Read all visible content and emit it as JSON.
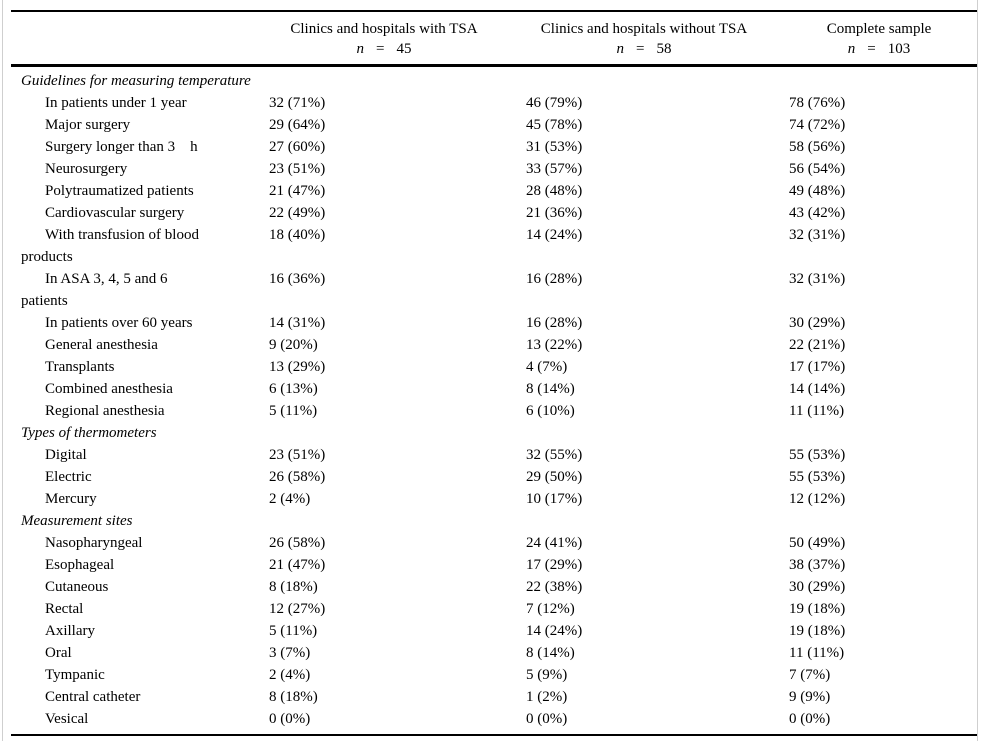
{
  "table": {
    "columns": [
      {
        "title": "Clinics and hospitals with TSA",
        "n_symbol": "n",
        "equals": "=",
        "n_value": "45"
      },
      {
        "title": "Clinics and hospitals without TSA",
        "n_symbol": "n",
        "equals": "=",
        "n_value": "58"
      },
      {
        "title": "Complete sample",
        "n_symbol": "n",
        "equals": "=",
        "n_value": "103"
      }
    ],
    "sections": [
      {
        "title": "Guidelines for measuring temperature",
        "rows": [
          {
            "label": "In patients under 1 year",
            "values": [
              "32 (71%)",
              "46 (79%)",
              "78 (76%)"
            ]
          },
          {
            "label": "Major surgery",
            "values": [
              "29 (64%)",
              "45 (78%)",
              "74 (72%)"
            ]
          },
          {
            "label": "Surgery longer than 3    h",
            "values": [
              "27 (60%)",
              "31 (53%)",
              "58 (56%)"
            ]
          },
          {
            "label": "Neurosurgery",
            "values": [
              "23 (51%)",
              "33 (57%)",
              "56 (54%)"
            ]
          },
          {
            "label": "Polytraumatized patients",
            "values": [
              "21 (47%)",
              "28 (48%)",
              "49 (48%)"
            ]
          },
          {
            "label": "Cardiovascular surgery",
            "values": [
              "22 (49%)",
              "21 (36%)",
              "43 (42%)"
            ]
          },
          {
            "label": "With transfusion of blood\nproducts",
            "values": [
              "18 (40%)",
              "14 (24%)",
              "32 (31%)"
            ]
          },
          {
            "label": "In ASA 3, 4, 5 and 6\npatients",
            "values": [
              "16 (36%)",
              "16 (28%)",
              "32 (31%)"
            ]
          },
          {
            "label": "In patients over 60 years",
            "values": [
              "14 (31%)",
              "16 (28%)",
              "30 (29%)"
            ]
          },
          {
            "label": "General anesthesia",
            "values": [
              "9 (20%)",
              "13 (22%)",
              "22 (21%)"
            ]
          },
          {
            "label": "Transplants",
            "values": [
              "13 (29%)",
              "4 (7%)",
              "17 (17%)"
            ]
          },
          {
            "label": "Combined anesthesia",
            "values": [
              "6 (13%)",
              "8 (14%)",
              "14 (14%)"
            ]
          },
          {
            "label": "Regional anesthesia",
            "values": [
              "5 (11%)",
              "6 (10%)",
              "11 (11%)"
            ]
          }
        ]
      },
      {
        "title": "Types of thermometers",
        "rows": [
          {
            "label": "Digital",
            "values": [
              "23 (51%)",
              "32 (55%)",
              "55 (53%)"
            ]
          },
          {
            "label": "Electric",
            "values": [
              "26 (58%)",
              "29 (50%)",
              "55 (53%)"
            ]
          },
          {
            "label": "Mercury",
            "values": [
              "2 (4%)",
              "10 (17%)",
              "12 (12%)"
            ]
          }
        ]
      },
      {
        "title": "Measurement sites",
        "rows": [
          {
            "label": "Nasopharyngeal",
            "values": [
              "26 (58%)",
              "24 (41%)",
              "50 (49%)"
            ]
          },
          {
            "label": "Esophageal",
            "values": [
              "21 (47%)",
              "17 (29%)",
              "38 (37%)"
            ]
          },
          {
            "label": "Cutaneous",
            "values": [
              "8 (18%)",
              "22 (38%)",
              "30 (29%)"
            ]
          },
          {
            "label": "Rectal",
            "values": [
              "12 (27%)",
              "7 (12%)",
              "19 (18%)"
            ]
          },
          {
            "label": "Axillary",
            "values": [
              "5 (11%)",
              "14 (24%)",
              "19 (18%)"
            ]
          },
          {
            "label": "Oral",
            "values": [
              "3 (7%)",
              "8 (14%)",
              "11 (11%)"
            ]
          },
          {
            "label": "Tympanic",
            "values": [
              "2 (4%)",
              "5 (9%)",
              "7 (7%)"
            ]
          },
          {
            "label": "Central catheter",
            "values": [
              "8 (18%)",
              "1 (2%)",
              "9 (9%)"
            ]
          },
          {
            "label": "Vesical",
            "values": [
              "0 (0%)",
              "0 (0%)",
              "0 (0%)"
            ]
          }
        ]
      }
    ],
    "text_color": "#000000",
    "rule_color": "#000000"
  }
}
